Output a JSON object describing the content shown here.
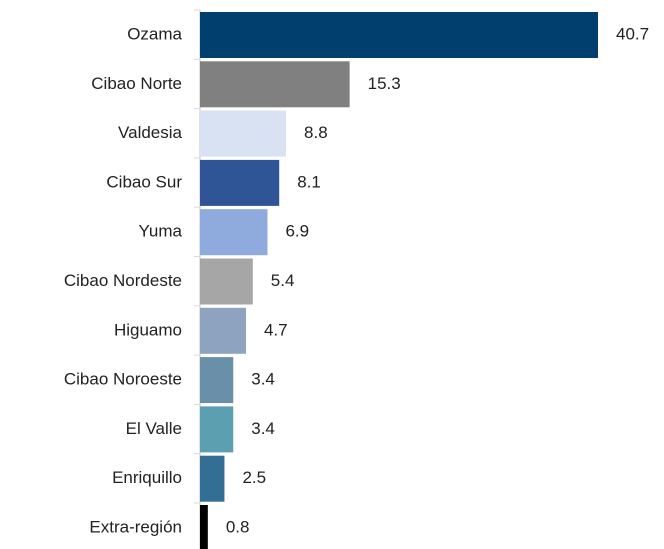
{
  "chart_data": {
    "type": "bar",
    "orientation": "horizontal",
    "categories": [
      "Ozama",
      "Cibao Norte",
      "Valdesia",
      "Cibao Sur",
      "Yuma",
      "Cibao Nordeste",
      "Higuamo",
      "Cibao Noroeste",
      "El Valle",
      "Enriquillo",
      "Extra-región"
    ],
    "values": [
      40.7,
      15.3,
      8.8,
      8.1,
      6.9,
      5.4,
      4.7,
      3.4,
      3.4,
      2.5,
      0.8
    ],
    "colors": [
      "#003f6e",
      "#808080",
      "#d9e2f3",
      "#2f5597",
      "#8faadc",
      "#a6a6a6",
      "#8ea3bf",
      "#6a8fa8",
      "#5b9fb0",
      "#336f94",
      "#000000"
    ]
  }
}
